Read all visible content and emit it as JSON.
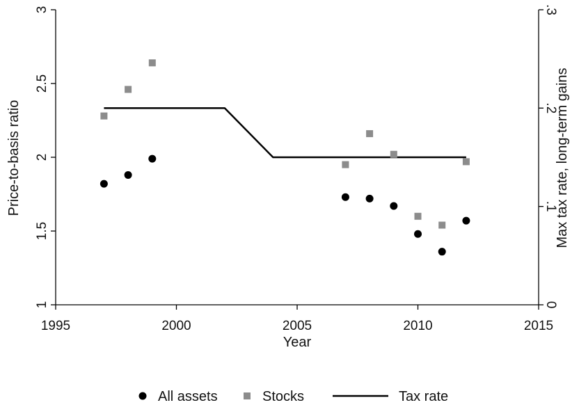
{
  "chart_data": {
    "type": "scatter",
    "title": "",
    "xlabel": "Year",
    "ylabel_left": "Price-to-basis ratio",
    "ylabel_right": "Max tax rate, long-term gains",
    "xlim": [
      1995,
      2015
    ],
    "ylim_left": [
      1,
      3
    ],
    "ylim_right": [
      0,
      0.3
    ],
    "x_ticks": [
      {
        "value": 1995,
        "label": "1995"
      },
      {
        "value": 2000,
        "label": "2000"
      },
      {
        "value": 2005,
        "label": "2005"
      },
      {
        "value": 2010,
        "label": "2010"
      },
      {
        "value": 2015,
        "label": "2015"
      }
    ],
    "y_ticks_left": [
      {
        "value": 1,
        "label": "1"
      },
      {
        "value": 1.5,
        "label": "1.5"
      },
      {
        "value": 2,
        "label": "2"
      },
      {
        "value": 2.5,
        "label": "2.5"
      },
      {
        "value": 3,
        "label": "3"
      }
    ],
    "y_ticks_right": [
      {
        "value": 0,
        "label": "0"
      },
      {
        "value": 0.1,
        "label": ".1"
      },
      {
        "value": 0.2,
        "label": ".2"
      },
      {
        "value": 0.3,
        "label": ".3"
      }
    ],
    "grid": false,
    "legend_position": "bottom",
    "series": [
      {
        "name": "All assets",
        "marker": "circle",
        "color": "#000000",
        "axis": "left",
        "x": [
          1997,
          1998,
          1999,
          2007,
          2008,
          2009,
          2010,
          2011,
          2012
        ],
        "y": [
          1.82,
          1.88,
          1.99,
          1.73,
          1.72,
          1.67,
          1.48,
          1.36,
          1.57
        ]
      },
      {
        "name": "Stocks",
        "marker": "square",
        "color": "#8c8c8c",
        "axis": "left",
        "x": [
          1997,
          1998,
          1999,
          2007,
          2008,
          2009,
          2010,
          2011,
          2012
        ],
        "y": [
          2.28,
          2.46,
          2.64,
          1.95,
          2.16,
          2.02,
          1.6,
          1.54,
          1.97
        ]
      },
      {
        "name": "Tax rate",
        "marker": "line",
        "color": "#000000",
        "axis": "right",
        "x": [
          1997,
          2002,
          2004,
          2012
        ],
        "y": [
          0.2,
          0.2,
          0.15,
          0.15
        ]
      }
    ]
  }
}
